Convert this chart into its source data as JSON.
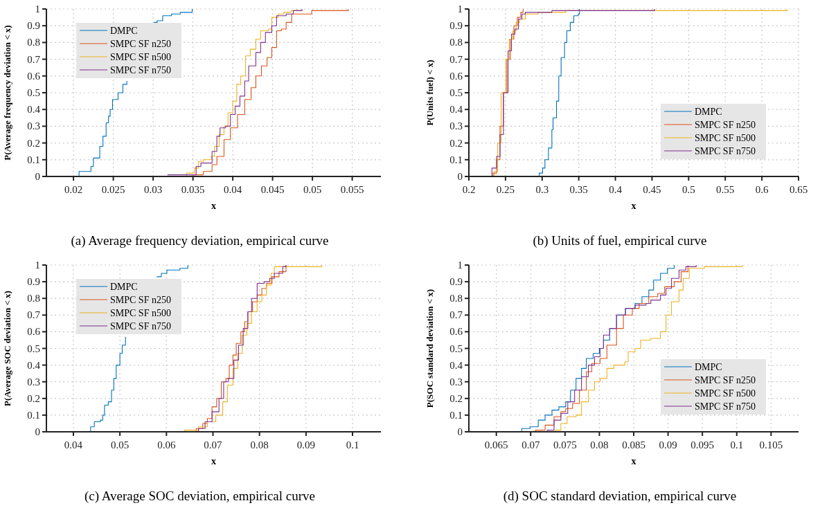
{
  "chart_data": [
    {
      "type": "step",
      "title": "(a) Average frequency deviation, empirical curve",
      "xlabel": "x",
      "ylabel": "P(Average frequency deviation < x)",
      "xlim": [
        0.0166,
        0.0586
      ],
      "xticks": [
        0.02,
        0.025,
        0.03,
        0.035,
        0.04,
        0.045,
        0.05,
        0.055
      ],
      "ylim": [
        0,
        1
      ],
      "yticks": [
        0,
        0.1,
        0.2,
        0.3,
        0.4,
        0.5,
        0.6,
        0.7,
        0.8,
        0.9,
        1
      ],
      "grid": true,
      "legend": "top left",
      "series": [
        {
          "name": "DMPC",
          "color": "#0072bd",
          "x": [
            0.0207,
            0.0207,
            0.0216,
            0.0222,
            0.0225,
            0.023,
            0.0233,
            0.0237,
            0.0241,
            0.0244,
            0.0246,
            0.0249,
            0.0253,
            0.0256,
            0.0262,
            0.0267,
            0.028,
            0.0301,
            0.0305,
            0.0312,
            0.0323,
            0.0334,
            0.0349
          ],
          "values": [
            0,
            0.03,
            0.03,
            0.06,
            0.11,
            0.11,
            0.18,
            0.24,
            0.32,
            0.36,
            0.4,
            0.46,
            0.46,
            0.5,
            0.55,
            0.57,
            null,
            0.92,
            0.93,
            0.96,
            0.97,
            0.98,
            1
          ]
        },
        {
          "name": "SMPC SF n250",
          "color": "#d95319",
          "x": [
            0.0348,
            0.0363,
            0.037,
            0.0374,
            0.038,
            0.0389,
            0.0397,
            0.0406,
            0.0415,
            0.0423,
            0.0429,
            0.0436,
            0.0443,
            0.0449,
            0.0455,
            0.0461,
            0.0467,
            0.0474,
            0.0499,
            0.0545
          ],
          "values": [
            0.01,
            0.03,
            0.03,
            0.07,
            0.12,
            0.22,
            0.29,
            0.37,
            0.46,
            0.53,
            0.6,
            0.66,
            0.71,
            0.77,
            0.87,
            0.88,
            0.92,
            0.97,
            0.99,
            1
          ]
        },
        {
          "name": "SMPC SF n500",
          "color": "#edb120",
          "x": [
            0.0336,
            0.0342,
            0.0352,
            0.0357,
            0.0363,
            0.0373,
            0.0377,
            0.0383,
            0.0389,
            0.0394,
            0.04,
            0.0405,
            0.041,
            0.0416,
            0.0422,
            0.0429,
            0.0435,
            0.0445,
            0.0449,
            0.0457,
            0.0464,
            0.0473,
            0.0481
          ],
          "values": [
            0,
            0.02,
            0.05,
            0.09,
            0.1,
            0.12,
            0.18,
            0.25,
            0.3,
            0.38,
            0.45,
            0.55,
            0.6,
            0.72,
            0.76,
            0.82,
            0.87,
            0.88,
            0.95,
            0.97,
            0.98,
            0.99,
            1
          ]
        },
        {
          "name": "SMPC SF n750",
          "color": "#7e2f8e",
          "x": [
            0.0318,
            0.0351,
            0.0354,
            0.036,
            0.037,
            0.0374,
            0.038,
            0.0384,
            0.0391,
            0.0397,
            0.0403,
            0.0409,
            0.0415,
            0.042,
            0.0429,
            0.0435,
            0.0441,
            0.0449,
            0.0455,
            0.0467,
            0.0476,
            0.0487
          ],
          "values": [
            0.01,
            0.01,
            0.06,
            0.08,
            0.08,
            0.15,
            0.24,
            0.29,
            0.3,
            0.37,
            0.42,
            0.48,
            0.57,
            0.66,
            0.74,
            0.8,
            0.86,
            0.9,
            0.96,
            0.97,
            0.99,
            1
          ]
        }
      ]
    },
    {
      "type": "step",
      "title": "(b) Units of fuel, empirical curve",
      "xlabel": "x",
      "ylabel": "P(Units fuel) < x)",
      "xlim": [
        0.2,
        0.65
      ],
      "xticks": [
        0.2,
        0.25,
        0.3,
        0.35,
        0.4,
        0.45,
        0.5,
        0.55,
        0.6,
        0.65
      ],
      "ylim": [
        0,
        1
      ],
      "yticks": [
        0,
        0.1,
        0.2,
        0.3,
        0.4,
        0.5,
        0.6,
        0.7,
        0.8,
        0.9,
        1
      ],
      "grid": true,
      "legend": "bottom right",
      "series": [
        {
          "name": "DMPC",
          "color": "#0072bd",
          "x": [
            0.2928,
            0.296,
            0.3007,
            0.3038,
            0.3086,
            0.3133,
            0.3149,
            0.3196,
            0.3227,
            0.3259,
            0.3306,
            0.3337,
            0.3384,
            0.3432,
            0.3495,
            0.351
          ],
          "values": [
            0,
            0.02,
            0.05,
            0.1,
            0.17,
            0.28,
            0.35,
            0.45,
            0.6,
            0.71,
            0.8,
            0.87,
            0.92,
            0.96,
            0.97,
            1
          ]
        },
        {
          "name": "SMPC SF n250",
          "color": "#d95319",
          "x": [
            0.2283,
            0.233,
            0.2378,
            0.2425,
            0.2472,
            0.2519,
            0.2566,
            0.2614,
            0.2661,
            0.2708,
            0.274
          ],
          "values": [
            0,
            0.02,
            0.1,
            0.3,
            0.5,
            0.7,
            0.82,
            0.9,
            0.95,
            0.98,
            1
          ]
        },
        {
          "name": "SMPC SF n500",
          "color": "#edb120",
          "x": [
            0.2315,
            0.2346,
            0.2393,
            0.244,
            0.2503,
            0.2551,
            0.2598,
            0.2645,
            0.2692,
            0.2771,
            0.2944,
            0.3322,
            0.6343
          ],
          "values": [
            0,
            0.03,
            0.2,
            0.5,
            0.7,
            0.82,
            0.87,
            0.92,
            0.94,
            0.97,
            0.98,
            0.99,
            1
          ]
        },
        {
          "name": "SMPC SF n750",
          "color": "#7e2f8e",
          "x": [
            0.2283,
            0.2315,
            0.2378,
            0.2425,
            0.2472,
            0.2535,
            0.2582,
            0.2629,
            0.2677,
            0.2724,
            0.2771,
            0.3133,
            0.4533
          ],
          "values": [
            0,
            0.05,
            0.12,
            0.25,
            0.5,
            0.75,
            0.85,
            0.88,
            0.94,
            0.97,
            0.98,
            0.99,
            1
          ]
        }
      ]
    },
    {
      "type": "step",
      "title": "(c) Average SOC deviation, empirical curve",
      "xlabel": "x",
      "ylabel": "P(Average SOC deviation < x)",
      "xlim": [
        0.0342,
        0.1061
      ],
      "xticks": [
        0.04,
        0.05,
        0.06,
        0.07,
        0.08,
        0.09,
        0.1
      ],
      "ylim": [
        0,
        1
      ],
      "yticks": [
        0,
        0.1,
        0.2,
        0.3,
        0.4,
        0.5,
        0.6,
        0.7,
        0.8,
        0.9,
        1
      ],
      "grid": true,
      "legend": "top left",
      "series": [
        {
          "name": "DMPC",
          "color": "#0072bd",
          "x": [
            0.043,
            0.0437,
            0.0445,
            0.0458,
            0.0463,
            0.0467,
            0.0475,
            0.0482,
            0.0487,
            0.0492,
            0.05,
            0.0505,
            0.0512,
            0.054,
            0.0579,
            0.0589,
            0.0601,
            0.0629,
            0.0646
          ],
          "values": [
            0,
            0.03,
            0.06,
            0.07,
            0.1,
            0.16,
            0.18,
            0.25,
            0.32,
            0.4,
            0.47,
            0.52,
            0.57,
            null,
            0.93,
            0.95,
            0.97,
            0.98,
            1
          ]
        },
        {
          "name": "SMPC SF n250",
          "color": "#d95319",
          "x": [
            0.0644,
            0.0664,
            0.0678,
            0.0688,
            0.0698,
            0.0708,
            0.0718,
            0.0728,
            0.0735,
            0.0743,
            0.075,
            0.076,
            0.0768,
            0.0775,
            0.0785,
            0.0795,
            0.0805,
            0.0815,
            0.0827,
            0.0842,
            0.0857
          ],
          "values": [
            0,
            0.02,
            0.05,
            0.08,
            0.15,
            0.2,
            0.3,
            0.32,
            0.4,
            0.46,
            0.53,
            0.6,
            0.66,
            0.72,
            0.78,
            0.82,
            0.86,
            0.89,
            0.93,
            0.96,
            1
          ]
        },
        {
          "name": "SMPC SF n500",
          "color": "#edb120",
          "x": [
            0.0599,
            0.0639,
            0.0669,
            0.0688,
            0.0706,
            0.0721,
            0.0731,
            0.0743,
            0.0753,
            0.0763,
            0.0773,
            0.0783,
            0.0795,
            0.0805,
            0.0815,
            0.0825,
            0.0832,
            0.0934
          ],
          "values": [
            0,
            0.01,
            0.03,
            0.06,
            0.1,
            0.18,
            0.28,
            0.38,
            0.47,
            0.58,
            0.65,
            0.72,
            0.78,
            0.82,
            0.88,
            0.95,
            0.99,
            1
          ]
        },
        {
          "name": "SMPC SF n750",
          "color": "#7e2f8e",
          "x": [
            0.0644,
            0.0669,
            0.0683,
            0.0698,
            0.0713,
            0.0723,
            0.0733,
            0.0745,
            0.0755,
            0.0765,
            0.0775,
            0.0783,
            0.0795,
            0.081,
            0.0822,
            0.0832,
            0.085,
            0.0857
          ],
          "values": [
            0,
            0.02,
            0.06,
            0.12,
            0.2,
            0.3,
            0.32,
            0.43,
            0.52,
            0.62,
            0.72,
            0.8,
            0.89,
            0.9,
            0.92,
            0.95,
            0.99,
            1
          ]
        }
      ]
    },
    {
      "type": "step",
      "title": "(d) SOC standard deviation, empirical curve",
      "xlabel": "x",
      "ylabel": "P(SOC standard deviation < x)",
      "xlim": [
        0.061,
        0.109
      ],
      "xticks": [
        0.065,
        0.07,
        0.075,
        0.08,
        0.085,
        0.09,
        0.095,
        0.1,
        0.105
      ],
      "ylim": [
        0,
        1
      ],
      "yticks": [
        0,
        0.1,
        0.2,
        0.3,
        0.4,
        0.5,
        0.6,
        0.7,
        0.8,
        0.9,
        1
      ],
      "grid": true,
      "legend": "bottom right",
      "series": [
        {
          "name": "DMPC",
          "color": "#0072bd",
          "x": [
            0.0682,
            0.0687,
            0.0699,
            0.0711,
            0.0721,
            0.0731,
            0.0741,
            0.0751,
            0.0758,
            0.0766,
            0.0774,
            0.0781,
            0.0791,
            0.08,
            0.0806,
            0.0815,
            0.0825,
            0.0838,
            0.0852,
            0.0862,
            0.0872,
            0.0879,
            0.0889,
            0.0899,
            0.0909
          ],
          "values": [
            0,
            0.02,
            0.03,
            0.07,
            0.1,
            0.13,
            0.15,
            0.18,
            0.25,
            0.32,
            0.38,
            0.44,
            0.47,
            0.5,
            0.55,
            0.62,
            0.7,
            0.74,
            0.77,
            0.81,
            0.85,
            0.91,
            0.95,
            0.98,
            1
          ]
        },
        {
          "name": "SMPC SF n250",
          "color": "#d95319",
          "x": [
            0.069,
            0.0707,
            0.0721,
            0.0734,
            0.0744,
            0.0751,
            0.0761,
            0.0771,
            0.0781,
            0.0789,
            0.0801,
            0.0811,
            0.0825,
            0.0835,
            0.0848,
            0.0858,
            0.0872,
            0.0885,
            0.0895,
            0.0909,
            0.0919,
            0.0929
          ],
          "values": [
            0,
            0.01,
            0.04,
            0.09,
            0.12,
            0.14,
            0.17,
            0.25,
            0.36,
            0.41,
            0.44,
            0.52,
            0.62,
            0.7,
            0.74,
            0.77,
            0.81,
            0.83,
            0.87,
            0.9,
            0.96,
            1
          ]
        },
        {
          "name": "SMPC SF n500",
          "color": "#edb120",
          "x": [
            0.0704,
            0.0736,
            0.0744,
            0.0753,
            0.0766,
            0.0774,
            0.0784,
            0.0793,
            0.0801,
            0.0811,
            0.0821,
            0.0837,
            0.0842,
            0.0852,
            0.086,
            0.0875,
            0.0889,
            0.0897,
            0.0905,
            0.0916,
            0.0922,
            0.0931,
            0.0953,
            0.1008
          ],
          "values": [
            0,
            0.01,
            0.05,
            0.09,
            0.1,
            0.18,
            0.25,
            0.3,
            0.32,
            0.38,
            0.4,
            0.42,
            0.48,
            0.5,
            0.55,
            0.56,
            0.6,
            0.7,
            0.78,
            0.85,
            0.92,
            0.98,
            0.99,
            1
          ]
        },
        {
          "name": "SMPC SF n750",
          "color": "#7e2f8e",
          "x": [
            0.0694,
            0.0724,
            0.0734,
            0.0744,
            0.0754,
            0.0764,
            0.0774,
            0.0784,
            0.0793,
            0.0801,
            0.0806,
            0.0815,
            0.0825,
            0.0838,
            0.0852,
            0.0868,
            0.0875,
            0.0889,
            0.0897,
            0.0905,
            0.0916,
            0.0926,
            0.0941
          ],
          "values": [
            0,
            0.01,
            0.07,
            0.11,
            0.18,
            0.25,
            0.33,
            0.4,
            0.45,
            0.5,
            0.58,
            0.62,
            0.7,
            0.74,
            0.76,
            0.77,
            0.79,
            0.82,
            0.86,
            0.92,
            0.97,
            0.99,
            1
          ]
        }
      ]
    }
  ]
}
